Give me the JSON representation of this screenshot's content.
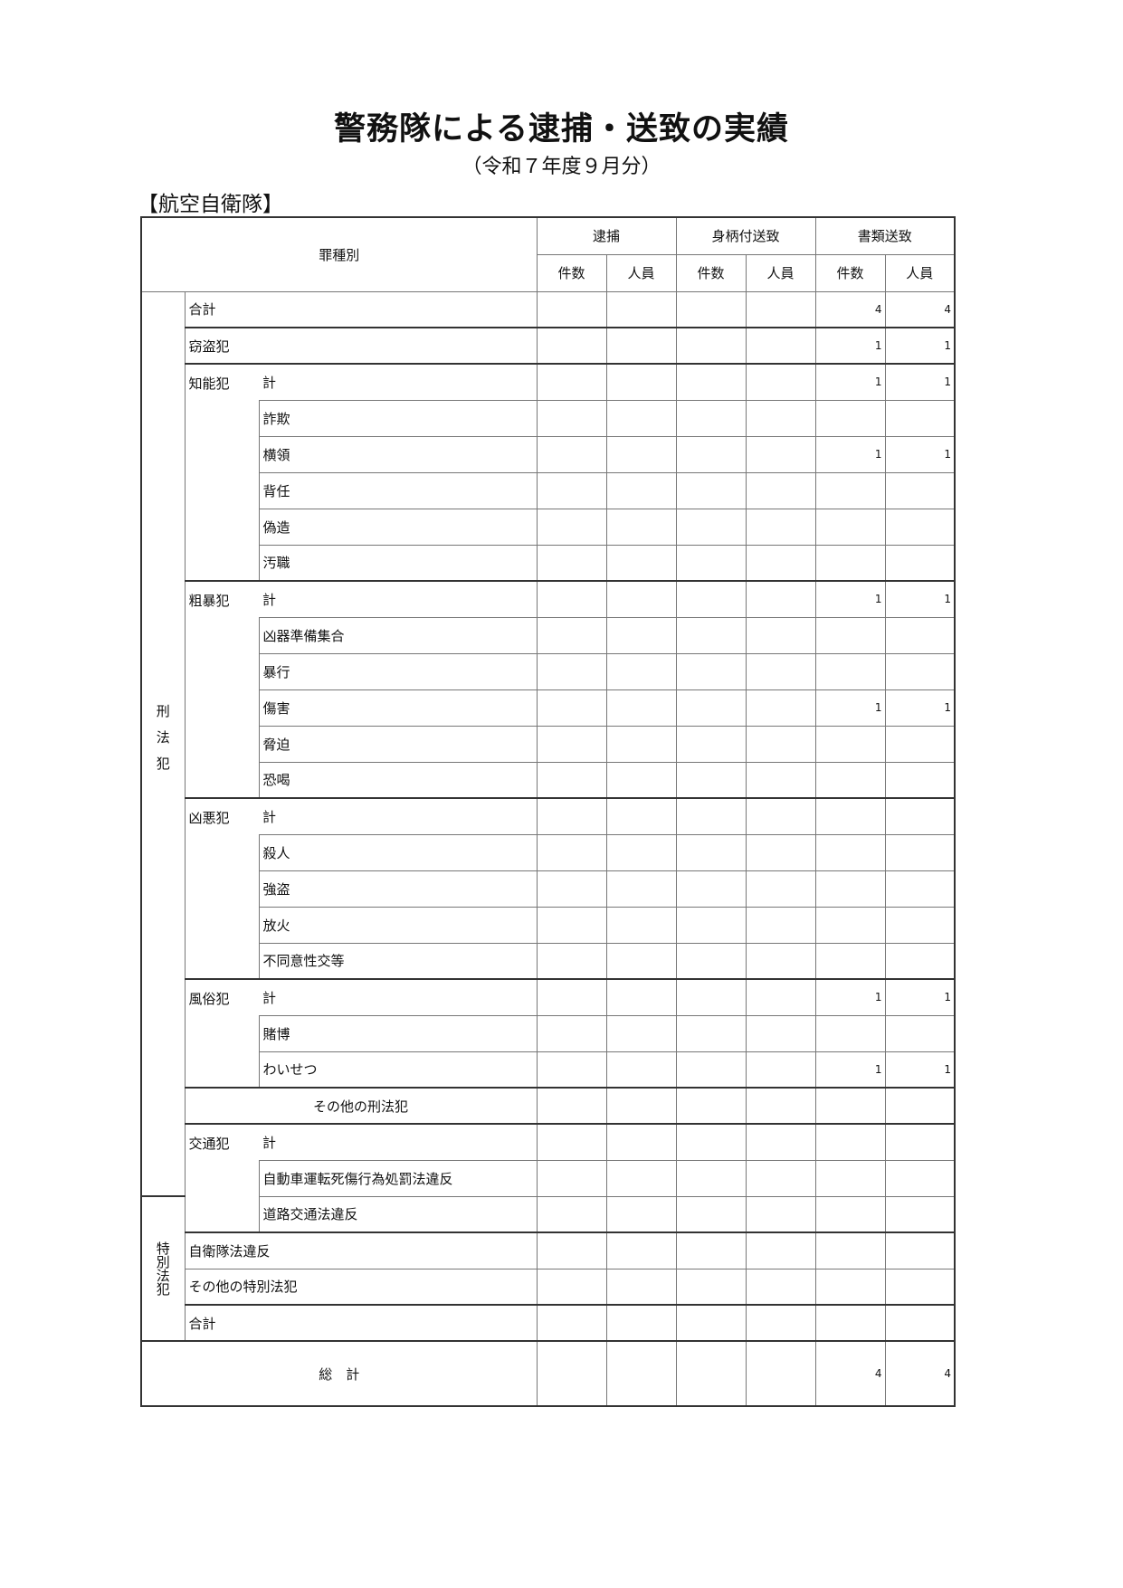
{
  "title": "警務隊による逮捕・送致の実績",
  "subtitle": "（令和７年度９月分）",
  "unit": "【航空自衛隊】",
  "table": {
    "header": {
      "category": "罪種別",
      "groups": [
        "逮捕",
        "身柄付送致",
        "書類送致"
      ],
      "subcols": [
        "件数",
        "人員",
        "件数",
        "人員",
        "件数",
        "人員"
      ]
    },
    "sections": {
      "keiho": "刑法犯",
      "tokubetsu": "特別法犯"
    },
    "rows": [
      {
        "label": "合計",
        "values": [
          "",
          "",
          "",
          "",
          "4",
          "4"
        ]
      },
      {
        "label": "窃盗犯",
        "values": [
          "",
          "",
          "",
          "",
          "1",
          "1"
        ]
      },
      {
        "group": "知能犯",
        "label": "計",
        "values": [
          "",
          "",
          "",
          "",
          "1",
          "1"
        ]
      },
      {
        "label": "詐欺",
        "values": [
          "",
          "",
          "",
          "",
          "",
          ""
        ]
      },
      {
        "label": "横領",
        "values": [
          "",
          "",
          "",
          "",
          "1",
          "1"
        ]
      },
      {
        "label": "背任",
        "values": [
          "",
          "",
          "",
          "",
          "",
          ""
        ]
      },
      {
        "label": "偽造",
        "values": [
          "",
          "",
          "",
          "",
          "",
          ""
        ]
      },
      {
        "label": "汚職",
        "values": [
          "",
          "",
          "",
          "",
          "",
          ""
        ]
      },
      {
        "group": "粗暴犯",
        "label": "計",
        "values": [
          "",
          "",
          "",
          "",
          "1",
          "1"
        ]
      },
      {
        "label": "凶器準備集合",
        "values": [
          "",
          "",
          "",
          "",
          "",
          ""
        ]
      },
      {
        "label": "暴行",
        "values": [
          "",
          "",
          "",
          "",
          "",
          ""
        ]
      },
      {
        "label": "傷害",
        "values": [
          "",
          "",
          "",
          "",
          "1",
          "1"
        ]
      },
      {
        "label": "脅迫",
        "values": [
          "",
          "",
          "",
          "",
          "",
          ""
        ]
      },
      {
        "label": "恐喝",
        "values": [
          "",
          "",
          "",
          "",
          "",
          ""
        ]
      },
      {
        "group": "凶悪犯",
        "label": "計",
        "values": [
          "",
          "",
          "",
          "",
          "",
          ""
        ]
      },
      {
        "label": "殺人",
        "values": [
          "",
          "",
          "",
          "",
          "",
          ""
        ]
      },
      {
        "label": "強盗",
        "values": [
          "",
          "",
          "",
          "",
          "",
          ""
        ]
      },
      {
        "label": "放火",
        "values": [
          "",
          "",
          "",
          "",
          "",
          ""
        ]
      },
      {
        "label": "不同意性交等",
        "values": [
          "",
          "",
          "",
          "",
          "",
          ""
        ]
      },
      {
        "group": "風俗犯",
        "label": "計",
        "values": [
          "",
          "",
          "",
          "",
          "1",
          "1"
        ]
      },
      {
        "label": "賭博",
        "values": [
          "",
          "",
          "",
          "",
          "",
          ""
        ]
      },
      {
        "label": "わいせつ",
        "values": [
          "",
          "",
          "",
          "",
          "1",
          "1"
        ]
      },
      {
        "label": "その他の刑法犯",
        "values": [
          "",
          "",
          "",
          "",
          "",
          ""
        ]
      },
      {
        "group": "交通犯",
        "label": "計",
        "values": [
          "",
          "",
          "",
          "",
          "",
          ""
        ]
      },
      {
        "label": "自動車運転死傷行為処罰法違反",
        "values": [
          "",
          "",
          "",
          "",
          "",
          ""
        ]
      },
      {
        "label": "道路交通法違反",
        "values": [
          "",
          "",
          "",
          "",
          "",
          ""
        ]
      },
      {
        "label": "自衛隊法違反",
        "values": [
          "",
          "",
          "",
          "",
          "",
          ""
        ]
      },
      {
        "label": "その他の特別法犯",
        "values": [
          "",
          "",
          "",
          "",
          "",
          ""
        ]
      },
      {
        "label": "合計",
        "values": [
          "",
          "",
          "",
          "",
          "",
          ""
        ]
      }
    ],
    "total": {
      "label": "総　計",
      "values": [
        "",
        "",
        "",
        "",
        "4",
        "4"
      ]
    }
  }
}
